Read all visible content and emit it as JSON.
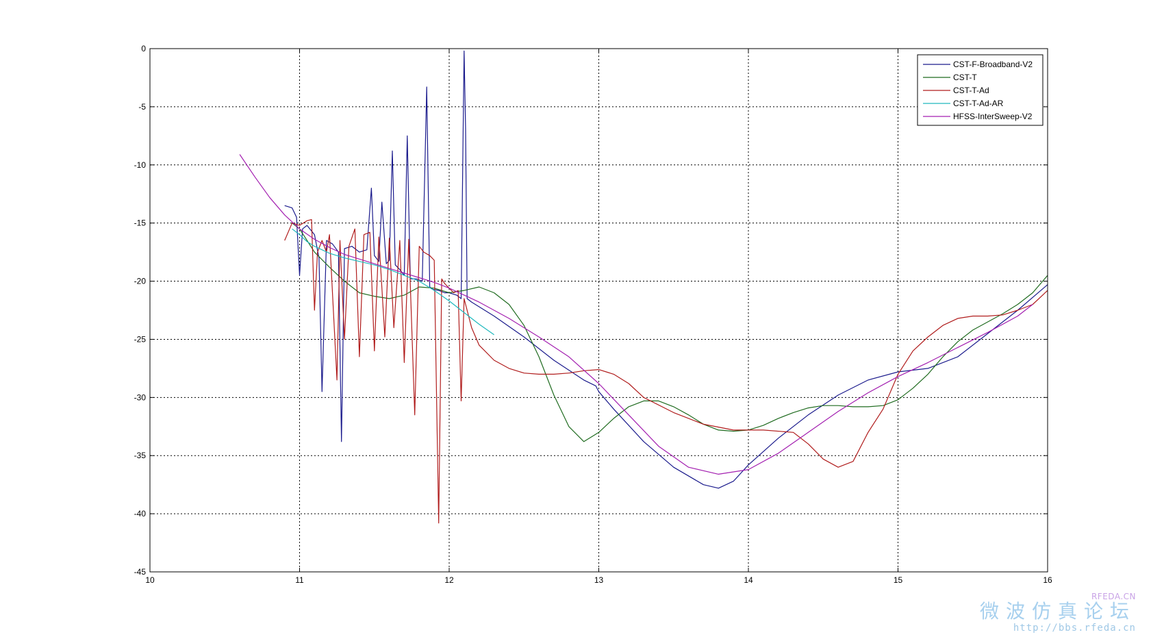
{
  "chart_data": {
    "type": "line",
    "title": "",
    "xlabel": "",
    "ylabel": "",
    "xlim": [
      10,
      16
    ],
    "ylim": [
      -45,
      0
    ],
    "xticks": [
      "10",
      "11",
      "12",
      "13",
      "14",
      "15",
      "16"
    ],
    "yticks": [
      "0",
      "-5",
      "-10",
      "-15",
      "-20",
      "-25",
      "-30",
      "-35",
      "-40",
      "-45"
    ],
    "grid": true,
    "legend_position": "top-right",
    "series": [
      {
        "name": "CST-F-Broadband-V2",
        "color": "#1a1a8c",
        "x": [
          10.9,
          10.95,
          10.98,
          11.0,
          11.02,
          11.05,
          11.1,
          11.13,
          11.15,
          11.18,
          11.22,
          11.26,
          11.28,
          11.3,
          11.35,
          11.4,
          11.45,
          11.48,
          11.5,
          11.53,
          11.55,
          11.58,
          11.6,
          11.62,
          11.64,
          11.67,
          11.7,
          11.72,
          11.74,
          11.78,
          11.82,
          11.85,
          11.87,
          11.89,
          11.93,
          11.97,
          12.0,
          12.05,
          12.08,
          12.1,
          12.11,
          12.12,
          12.15,
          12.3,
          12.5,
          12.7,
          12.9,
          12.98,
          13.0,
          13.1,
          13.3,
          13.5,
          13.7,
          13.8,
          13.9,
          14.0,
          14.2,
          14.4,
          14.6,
          14.8,
          15.0,
          15.2,
          15.4,
          15.6,
          15.8,
          16.0
        ],
        "y": [
          -13.5,
          -13.7,
          -14.5,
          -19.5,
          -15.5,
          -15.2,
          -16.0,
          -18.0,
          -29.5,
          -16.5,
          -16.8,
          -17.5,
          -33.8,
          -17.2,
          -17.0,
          -17.5,
          -17.3,
          -12.0,
          -17.8,
          -18.3,
          -13.2,
          -18.5,
          -18.2,
          -8.8,
          -18.6,
          -19.0,
          -19.5,
          -7.5,
          -19.8,
          -19.8,
          -20.0,
          -3.3,
          -20.5,
          -20.7,
          -20.8,
          -21.0,
          -21.0,
          -21.2,
          -21.5,
          -0.2,
          -7.0,
          -21.5,
          -21.8,
          -23.0,
          -24.8,
          -26.8,
          -28.5,
          -29.0,
          -29.5,
          -31.0,
          -33.8,
          -36.0,
          -37.5,
          -37.8,
          -37.2,
          -35.8,
          -33.5,
          -31.5,
          -29.8,
          -28.5,
          -27.8,
          -27.5,
          -26.5,
          -24.5,
          -22.5,
          -20.3
        ]
      },
      {
        "name": "CST-T",
        "color": "#1f6b1f",
        "x": [
          10.95,
          11.0,
          11.05,
          11.1,
          11.2,
          11.3,
          11.4,
          11.5,
          11.6,
          11.7,
          11.8,
          11.9,
          12.0,
          12.1,
          12.2,
          12.3,
          12.4,
          12.5,
          12.6,
          12.7,
          12.8,
          12.9,
          13.0,
          13.1,
          13.2,
          13.3,
          13.4,
          13.5,
          13.6,
          13.7,
          13.8,
          13.9,
          14.0,
          14.1,
          14.2,
          14.3,
          14.4,
          14.5,
          14.6,
          14.7,
          14.8,
          14.9,
          15.0,
          15.1,
          15.2,
          15.3,
          15.4,
          15.5,
          15.6,
          15.7,
          15.8,
          15.9,
          16.0
        ],
        "y": [
          -15.0,
          -15.5,
          -16.5,
          -17.5,
          -18.8,
          -20.0,
          -21.0,
          -21.3,
          -21.5,
          -21.2,
          -20.5,
          -20.6,
          -21.0,
          -20.8,
          -20.5,
          -21.0,
          -22.0,
          -23.8,
          -26.5,
          -29.8,
          -32.5,
          -33.8,
          -33.0,
          -31.8,
          -30.8,
          -30.3,
          -30.3,
          -30.8,
          -31.5,
          -32.3,
          -32.8,
          -32.9,
          -32.8,
          -32.4,
          -31.8,
          -31.3,
          -30.9,
          -30.7,
          -30.7,
          -30.8,
          -30.8,
          -30.7,
          -30.2,
          -29.2,
          -28.0,
          -26.5,
          -25.2,
          -24.2,
          -23.5,
          -22.8,
          -22.0,
          -21.0,
          -19.5
        ]
      },
      {
        "name": "CST-T-Ad",
        "color": "#b01c1c",
        "x": [
          10.9,
          10.95,
          11.0,
          11.05,
          11.08,
          11.1,
          11.12,
          11.15,
          11.18,
          11.2,
          11.25,
          11.27,
          11.3,
          11.33,
          11.37,
          11.4,
          11.43,
          11.47,
          11.5,
          11.53,
          11.57,
          11.6,
          11.63,
          11.67,
          11.7,
          11.73,
          11.77,
          11.8,
          11.83,
          11.87,
          11.9,
          11.93,
          11.95,
          11.97,
          12.0,
          12.03,
          12.06,
          12.08,
          12.1,
          12.12,
          12.15,
          12.2,
          12.3,
          12.4,
          12.5,
          12.6,
          12.7,
          12.8,
          12.9,
          13.0,
          13.1,
          13.2,
          13.3,
          13.5,
          13.7,
          13.9,
          14.1,
          14.3,
          14.4,
          14.5,
          14.6,
          14.7,
          14.8,
          14.9,
          15.0,
          15.1,
          15.2,
          15.3,
          15.4,
          15.5,
          15.6,
          15.7,
          15.8,
          15.9,
          16.0
        ],
        "y": [
          -16.5,
          -15.0,
          -15.2,
          -14.8,
          -14.7,
          -22.5,
          -17.5,
          -16.5,
          -17.5,
          -16.0,
          -28.5,
          -16.5,
          -25.0,
          -17.0,
          -15.5,
          -26.5,
          -16.0,
          -15.8,
          -26.0,
          -16.2,
          -24.8,
          -16.3,
          -24.0,
          -16.5,
          -27.0,
          -16.4,
          -31.5,
          -17.0,
          -17.5,
          -17.8,
          -18.2,
          -40.8,
          -19.8,
          -20.2,
          -20.6,
          -21.0,
          -20.8,
          -30.3,
          -21.5,
          -22.5,
          -24.0,
          -25.5,
          -26.8,
          -27.5,
          -27.9,
          -28.0,
          -28.0,
          -27.9,
          -27.7,
          -27.6,
          -28.0,
          -28.8,
          -30.0,
          -31.3,
          -32.3,
          -32.8,
          -32.8,
          -33.0,
          -34.0,
          -35.3,
          -36.0,
          -35.5,
          -33.0,
          -31.0,
          -28.0,
          -26.0,
          -24.8,
          -23.8,
          -23.2,
          -23.0,
          -23.0,
          -22.9,
          -22.5,
          -22.0,
          -20.8
        ]
      },
      {
        "name": "CST-T-Ad-AR",
        "color": "#1eb8bd",
        "x": [
          10.95,
          11.0,
          11.05,
          11.1,
          11.2,
          11.3,
          11.4,
          11.5,
          11.6,
          11.7,
          11.8,
          11.9,
          12.0,
          12.1,
          12.2,
          12.3
        ],
        "y": [
          -15.5,
          -16.0,
          -16.6,
          -17.0,
          -17.6,
          -18.0,
          -18.3,
          -18.6,
          -19.0,
          -19.5,
          -20.0,
          -20.8,
          -21.7,
          -22.7,
          -23.7,
          -24.6
        ]
      },
      {
        "name": "HFSS-InterSweep-V2",
        "color": "#a31fb0",
        "x": [
          10.6,
          10.7,
          10.8,
          10.9,
          11.0,
          11.1,
          11.2,
          11.3,
          11.4,
          11.5,
          11.6,
          11.7,
          11.8,
          11.9,
          12.0,
          12.2,
          12.4,
          12.6,
          12.8,
          13.0,
          13.2,
          13.4,
          13.6,
          13.8,
          14.0,
          14.2,
          14.4,
          14.6,
          14.8,
          15.0,
          15.2,
          15.4,
          15.6,
          15.8,
          15.9
        ],
        "y": [
          -9.1,
          -11.0,
          -12.8,
          -14.3,
          -15.5,
          -16.4,
          -17.1,
          -17.7,
          -18.1,
          -18.5,
          -18.9,
          -19.3,
          -19.7,
          -20.1,
          -20.6,
          -21.8,
          -23.2,
          -24.8,
          -26.5,
          -28.8,
          -31.5,
          -34.2,
          -36.0,
          -36.6,
          -36.2,
          -34.8,
          -33.0,
          -31.2,
          -29.6,
          -28.2,
          -27.0,
          -25.7,
          -24.4,
          -23.0,
          -22.0
        ]
      }
    ]
  },
  "watermark": {
    "brand": "RFEDA.CN",
    "title": "微波仿真论坛",
    "url": "http://bbs.rfeda.cn"
  }
}
